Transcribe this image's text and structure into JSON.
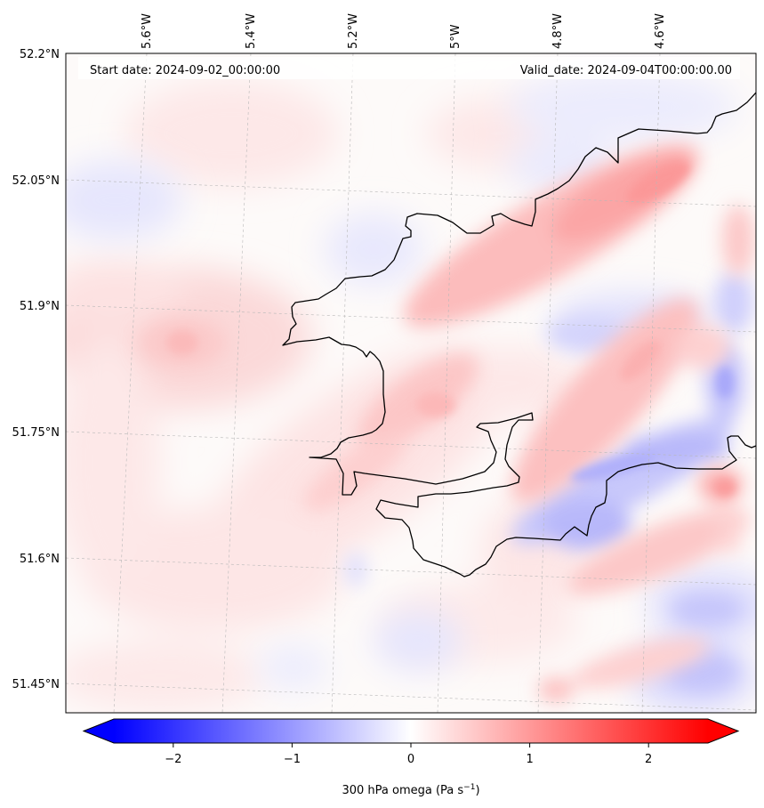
{
  "map": {
    "start_label": "Start date: 2024-09-02_00:00:00",
    "valid_label": "Valid_date: 2024-09-04T00:00:00.00",
    "lon_labels": [
      "5.6°W",
      "5.4°W",
      "5.2°W",
      "5°W",
      "4.8°W",
      "4.6°W"
    ],
    "lat_labels": [
      "52.2°N",
      "52.05°N",
      "51.9°N",
      "51.75°N",
      "51.6°N",
      "51.45°N"
    ],
    "gridlines": true,
    "coastline_color": "#000000"
  },
  "colorbar": {
    "tick_values": [
      -2,
      -1,
      0,
      1,
      2
    ],
    "tick_labels": [
      "−2",
      "−1",
      "0",
      "1",
      "2"
    ],
    "range": [
      -2.5,
      2.5
    ],
    "colormap": "bwr",
    "label_text": "300 hPa omega (Pa s",
    "label_sup": "−1",
    "label_close": ")"
  },
  "colors": {
    "negative": "#0000ff",
    "zero": "#ffffff",
    "positive": "#ff0000"
  }
}
